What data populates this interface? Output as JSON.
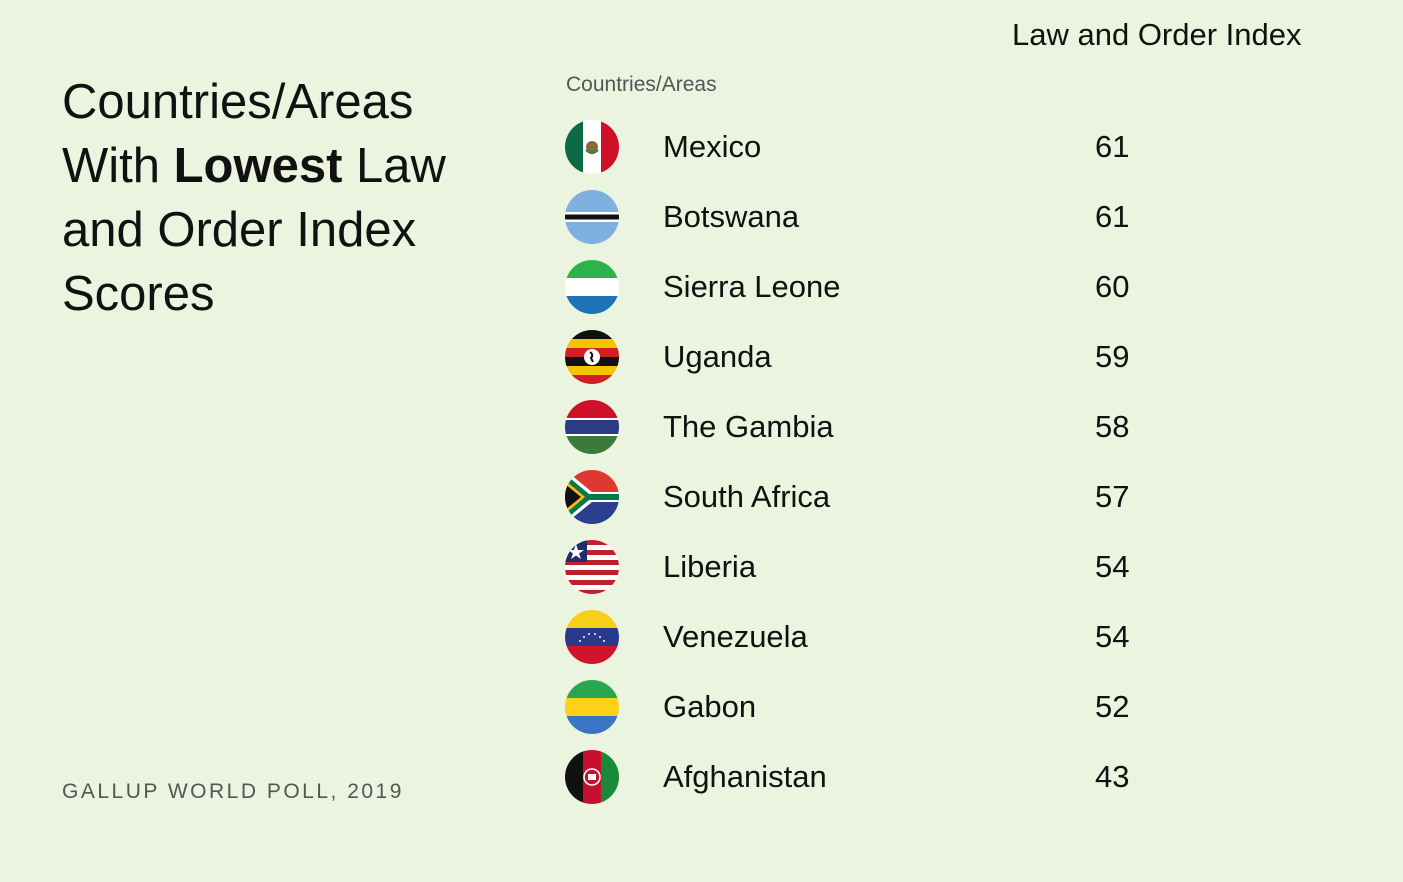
{
  "title": {
    "line1": "Countries/Areas",
    "line2_pre": "With ",
    "line2_bold": "Lowest",
    "line2_post": " Law",
    "line3": "and Order Index",
    "line4": "Scores"
  },
  "source": "GALLUP WORLD POLL, 2019",
  "columns": {
    "country": "Countries/Areas",
    "value": "Law and Order Index"
  },
  "colors": {
    "background": "#ebf4df"
  },
  "chart_data": {
    "type": "table",
    "title": "Countries/Areas With Lowest Law and Order Index Scores",
    "columns": [
      "Countries/Areas",
      "Law and Order Index"
    ],
    "rows": [
      {
        "country": "Mexico",
        "value": 61,
        "flag": "mexico-flag-icon"
      },
      {
        "country": "Botswana",
        "value": 61,
        "flag": "botswana-flag-icon"
      },
      {
        "country": "Sierra Leone",
        "value": 60,
        "flag": "sierra-leone-flag-icon"
      },
      {
        "country": "Uganda",
        "value": 59,
        "flag": "uganda-flag-icon"
      },
      {
        "country": "The Gambia",
        "value": 58,
        "flag": "gambia-flag-icon"
      },
      {
        "country": "South Africa",
        "value": 57,
        "flag": "south-africa-flag-icon"
      },
      {
        "country": "Liberia",
        "value": 54,
        "flag": "liberia-flag-icon"
      },
      {
        "country": "Venezuela",
        "value": 54,
        "flag": "venezuela-flag-icon"
      },
      {
        "country": "Gabon",
        "value": 52,
        "flag": "gabon-flag-icon"
      },
      {
        "country": "Afghanistan",
        "value": 43,
        "flag": "afghanistan-flag-icon"
      }
    ]
  }
}
